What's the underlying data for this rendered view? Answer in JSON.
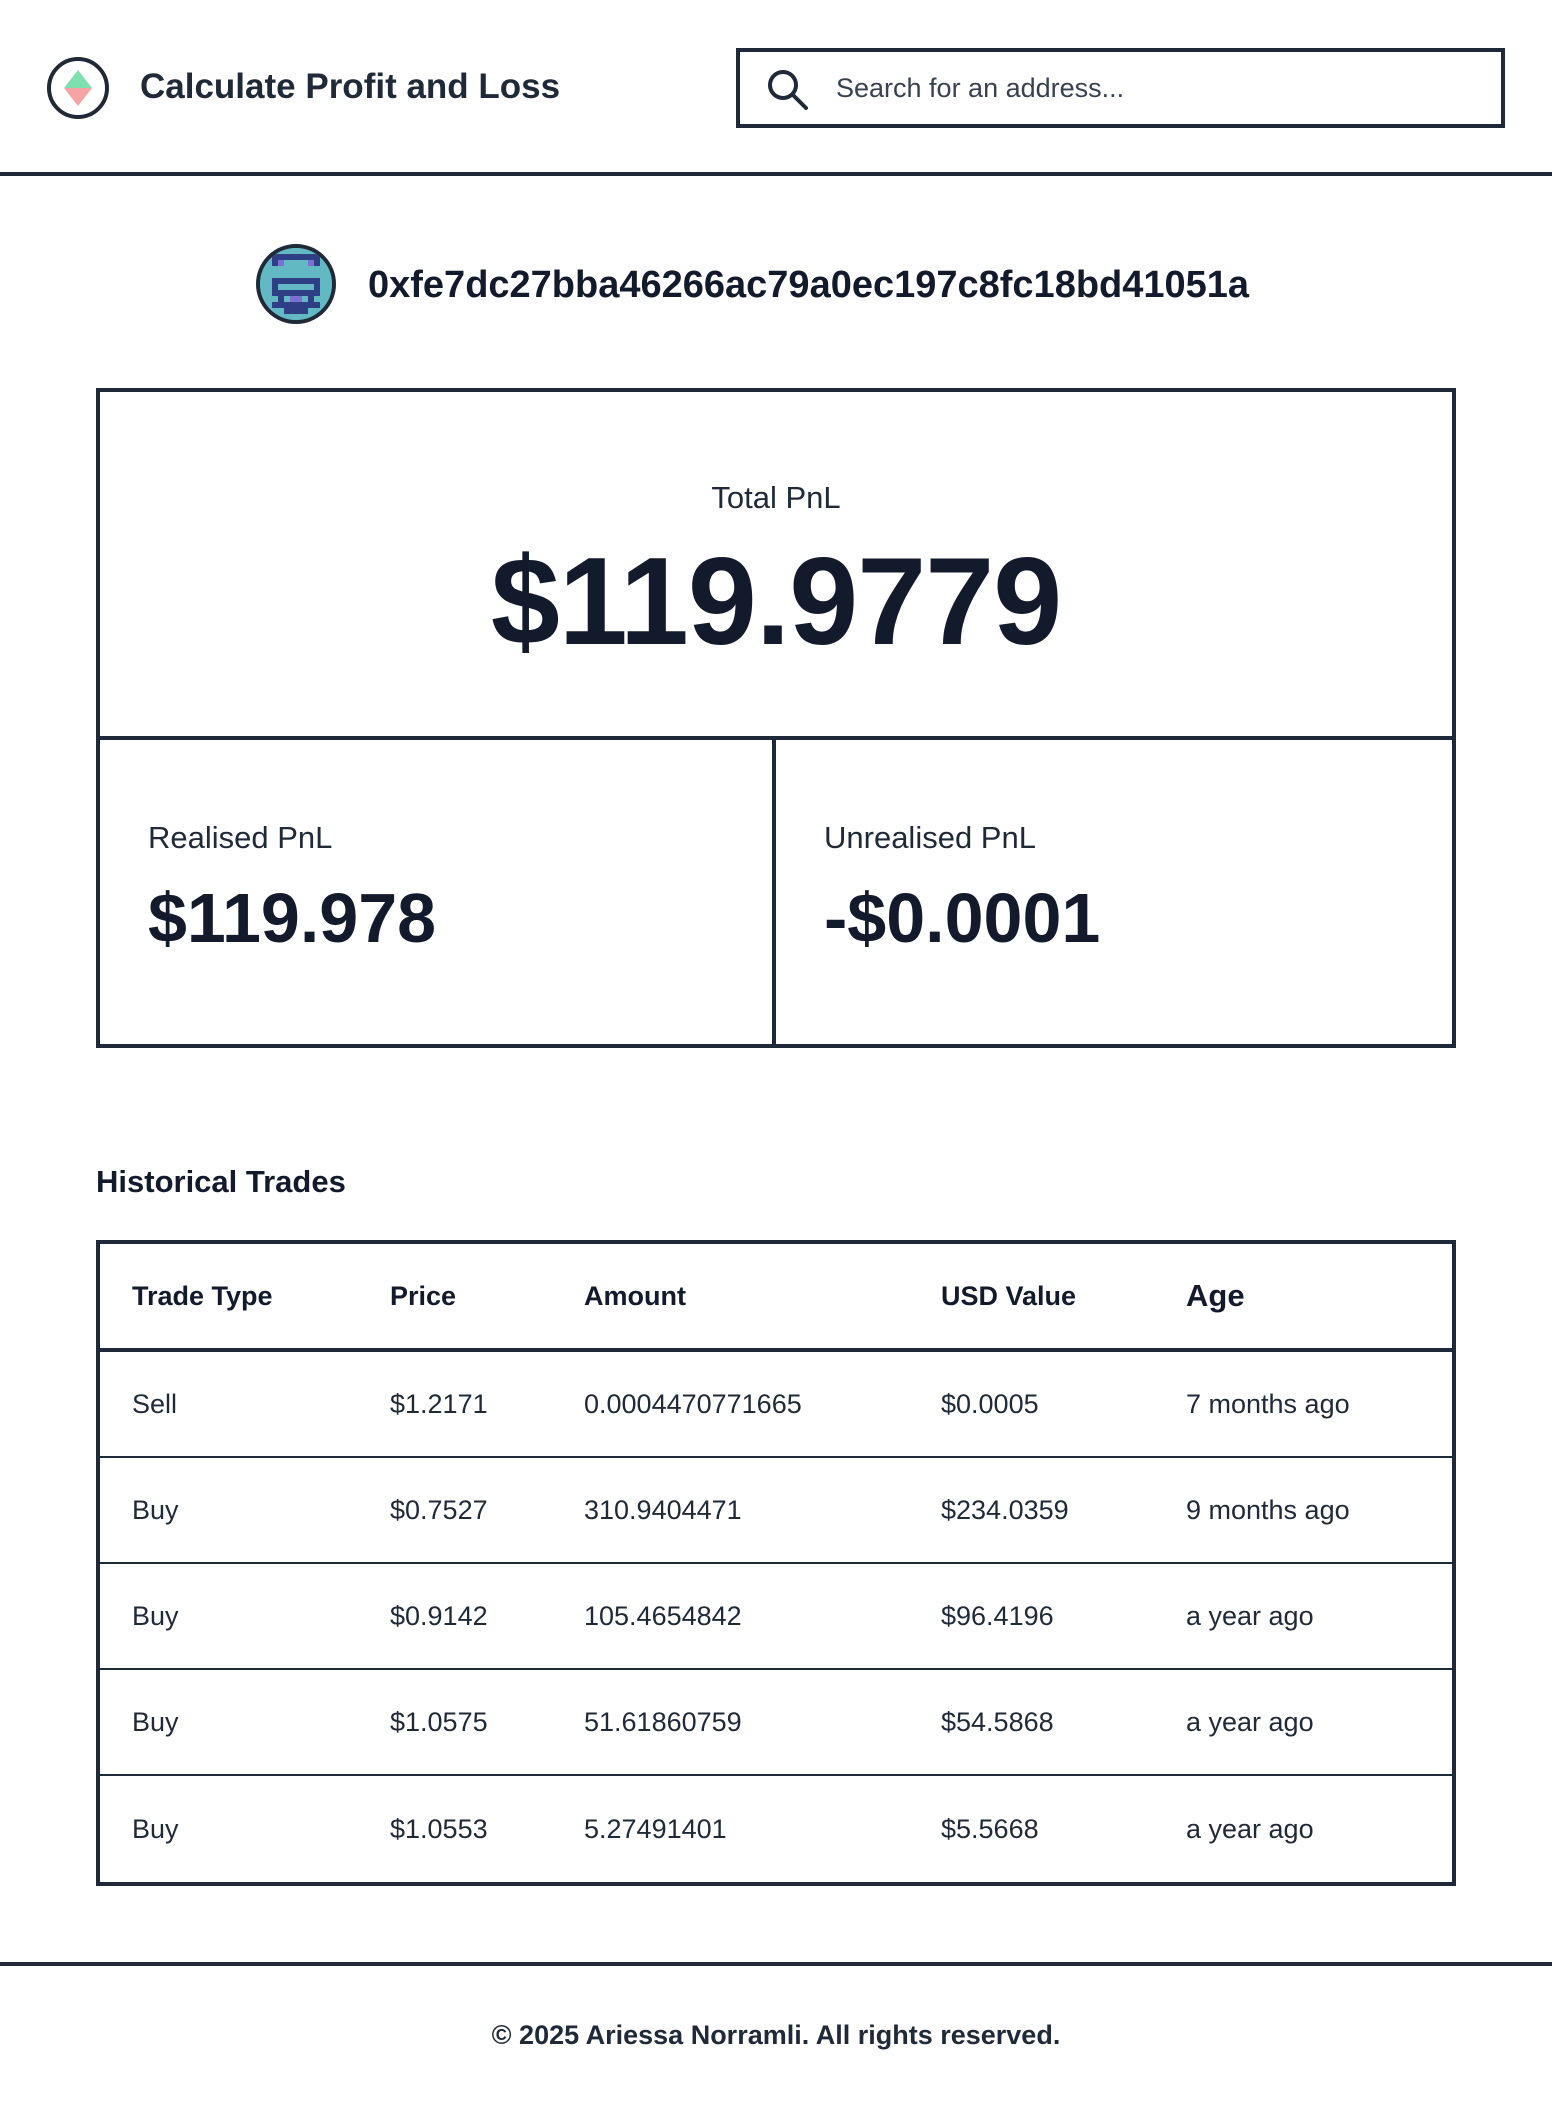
{
  "header": {
    "title": "Calculate Profit and Loss",
    "logo_icon": "diamond-logo-icon",
    "search": {
      "placeholder": "Search for an address...",
      "icon": "search-icon"
    }
  },
  "wallet": {
    "address": "0xfe7dc27bba46266ac79a0ec197c8fc18bd41051a",
    "avatar_icon": "pixel-avatar-icon"
  },
  "pnl": {
    "total_label": "Total PnL",
    "total_value": "$119.9779",
    "realised_label": "Realised PnL",
    "realised_value": "$119.978",
    "unrealised_label": "Unrealised PnL",
    "unrealised_value": "-$0.0001"
  },
  "trades": {
    "title": "Historical Trades",
    "columns": [
      "Trade Type",
      "Price",
      "Amount",
      "USD Value",
      "Age"
    ],
    "rows": [
      [
        "Sell",
        "$1.2171",
        "0.0004470771665",
        "$0.0005",
        "7 months ago"
      ],
      [
        "Buy",
        "$0.7527",
        "310.9404471",
        "$234.0359",
        "9 months ago"
      ],
      [
        "Buy",
        "$0.9142",
        "105.4654842",
        "$96.4196",
        "a year ago"
      ],
      [
        "Buy",
        "$1.0575",
        "51.61860759",
        "$54.5868",
        "a year ago"
      ],
      [
        "Buy",
        "$1.0553",
        "5.27491401",
        "$5.5668",
        "a year ago"
      ]
    ]
  },
  "footer": {
    "copyright": "© 2025 Ariessa Norramli. All rights reserved."
  },
  "colors": {
    "text": "#121a2b",
    "border": "#1f2937",
    "logo_top": "#7ee0b0",
    "logo_bottom": "#f5a3a3",
    "avatar_bg": "#62b9c4",
    "avatar_dark": "#2f3f86",
    "avatar_purple": "#7b6fd6"
  }
}
